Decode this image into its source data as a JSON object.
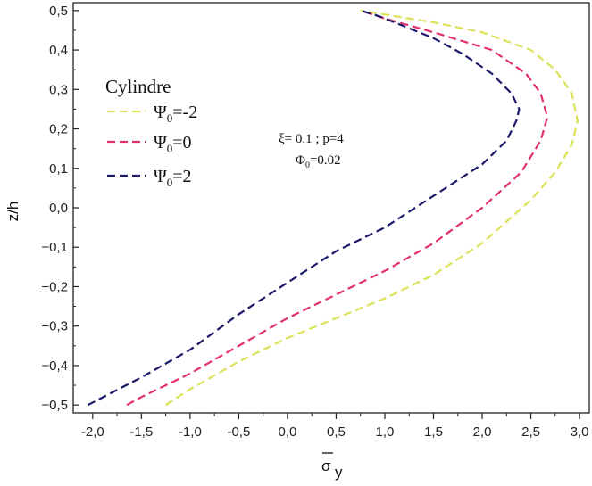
{
  "chart_data": {
    "type": "line",
    "xlabel": "σ",
    "xlabel_sub": "y",
    "ylabel": "z/h",
    "xlim": [
      -2.2,
      3.1
    ],
    "ylim": [
      -0.52,
      0.52
    ],
    "xticks": [
      -2.0,
      -1.5,
      -1.0,
      -0.5,
      0.0,
      0.5,
      1.0,
      1.5,
      2.0,
      2.5,
      3.0
    ],
    "xtick_labels": [
      "-2,0",
      "-1,5",
      "-1,0",
      "-0,5",
      "0,0",
      "0,5",
      "1,0",
      "1,5",
      "2,0",
      "2,5",
      "3,0"
    ],
    "yticks": [
      -0.5,
      -0.4,
      -0.3,
      -0.2,
      -0.1,
      0.0,
      0.1,
      0.2,
      0.3,
      0.4,
      0.5
    ],
    "ytick_labels": [
      "−0,5",
      "−0,4",
      "−0,3",
      "−0,2",
      "−0,1",
      "0,0",
      "0,1",
      "0,2",
      "0,3",
      "0,4",
      "0,5"
    ],
    "grid": false,
    "legend_title": "Cylindre",
    "legend_position": "left",
    "series": [
      {
        "name": "Ψ0=-2",
        "label_base": "Ψ",
        "label_sub": "0",
        "label_rest": "=-2",
        "color": "#dde25a",
        "x": [
          -1.25,
          -1.0,
          -0.5,
          0.0,
          0.5,
          1.0,
          1.5,
          2.0,
          2.5,
          2.75,
          2.92,
          2.98,
          2.92,
          2.75,
          2.5,
          2.0,
          1.5,
          1.0,
          0.75
        ],
        "y": [
          -0.5,
          -0.46,
          -0.39,
          -0.33,
          -0.28,
          -0.23,
          -0.17,
          -0.09,
          0.02,
          0.09,
          0.16,
          0.22,
          0.29,
          0.35,
          0.4,
          0.445,
          0.47,
          0.49,
          0.5
        ]
      },
      {
        "name": "Ψ0=0",
        "label_base": "Ψ",
        "label_sub": "0",
        "label_rest": "=0",
        "color": "#e2306f",
        "x": [
          -1.65,
          -1.5,
          -1.0,
          -0.5,
          0.0,
          0.5,
          1.0,
          1.5,
          2.0,
          2.4,
          2.6,
          2.67,
          2.6,
          2.45,
          2.1,
          1.5,
          1.0,
          0.75
        ],
        "y": [
          -0.5,
          -0.48,
          -0.42,
          -0.35,
          -0.28,
          -0.22,
          -0.16,
          -0.09,
          0.0,
          0.09,
          0.17,
          0.23,
          0.29,
          0.34,
          0.4,
          0.445,
          0.48,
          0.5
        ]
      },
      {
        "name": "Ψ0=2",
        "label_base": "Ψ",
        "label_sub": "0",
        "label_rest": "=2",
        "color": "#1a1a6b",
        "x": [
          -2.05,
          -1.5,
          -1.0,
          -0.5,
          0.0,
          0.5,
          1.0,
          1.5,
          2.0,
          2.25,
          2.35,
          2.38,
          2.3,
          2.1,
          1.8,
          1.5,
          1.2,
          0.95,
          0.75
        ],
        "y": [
          -0.5,
          -0.43,
          -0.36,
          -0.27,
          -0.19,
          -0.11,
          -0.05,
          0.03,
          0.11,
          0.17,
          0.22,
          0.25,
          0.29,
          0.34,
          0.39,
          0.43,
          0.46,
          0.485,
          0.5
        ]
      }
    ],
    "annotations": [
      {
        "base": "ξ= 0.1 ; p=4"
      },
      {
        "base": "Φ",
        "sub": "0",
        "rest": "=0.02"
      }
    ]
  }
}
